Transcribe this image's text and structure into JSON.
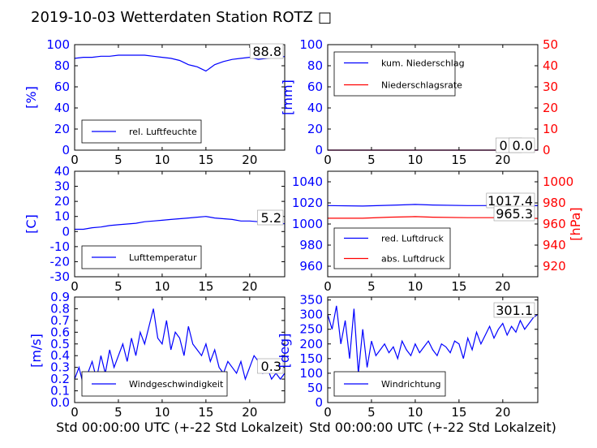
{
  "title": "2019-10-03 Wetterdaten Station ROTZ",
  "title_glyph": "□",
  "colors": {
    "blue": "#0000ff",
    "red": "#ff0000",
    "black": "#000000"
  },
  "chart_data": [
    {
      "type": "line",
      "ylabel": "[%]",
      "xlim": [
        0,
        24
      ],
      "ylim": [
        0,
        100
      ],
      "xticks": [
        0,
        5,
        10,
        15,
        20
      ],
      "yticks": [
        0,
        20,
        40,
        60,
        80,
        100
      ],
      "legend": {
        "placement": "bottom-left"
      },
      "annotations": [
        "88.8"
      ],
      "series": [
        {
          "name": "rel. Luftfeuchte",
          "color": "#0000ff",
          "x": [
            0,
            1,
            2,
            3,
            4,
            5,
            6,
            7,
            8,
            9,
            10,
            11,
            12,
            12.5,
            13,
            13.5,
            14,
            14.5,
            15,
            15.5,
            16,
            17,
            18,
            19,
            20,
            20.5,
            21,
            22,
            23,
            24
          ],
          "y": [
            87,
            88,
            88,
            89,
            89,
            90,
            90,
            90,
            90,
            89,
            88,
            87,
            85,
            83,
            81,
            80,
            79,
            77,
            75,
            78,
            81,
            84,
            86,
            87,
            88,
            87,
            86,
            87,
            88,
            88.8
          ]
        }
      ]
    },
    {
      "type": "line",
      "ylabel": "[mm]",
      "y2label": "[mm/std]",
      "xlim": [
        0,
        24
      ],
      "ylim": [
        0,
        100
      ],
      "y2lim": [
        0,
        50
      ],
      "xticks": [
        0,
        5,
        10,
        15,
        20
      ],
      "yticks": [
        0,
        20,
        40,
        60,
        80,
        100
      ],
      "y2ticks": [
        0,
        10,
        20,
        30,
        40,
        50
      ],
      "legend": {
        "placement": "top-left"
      },
      "annotations": [
        "0.0",
        "0.0"
      ],
      "series": [
        {
          "name": "kum. Niederschlag",
          "color": "#0000ff",
          "x": [
            0,
            24
          ],
          "y": [
            0,
            0
          ]
        },
        {
          "name": "Niederschlagsrate",
          "color": "#ff0000",
          "axis": "right",
          "x": [
            0,
            24
          ],
          "y": [
            0,
            0
          ]
        }
      ]
    },
    {
      "type": "line",
      "ylabel": "[C]",
      "xlim": [
        0,
        24
      ],
      "ylim": [
        -30,
        40
      ],
      "xticks": [
        0,
        5,
        10,
        15,
        20
      ],
      "yticks": [
        -30,
        -20,
        -10,
        0,
        10,
        20,
        30,
        40
      ],
      "legend": {
        "placement": "bottom-left"
      },
      "annotations": [
        "5.2"
      ],
      "series": [
        {
          "name": "Lufttemperatur",
          "color": "#0000ff",
          "x": [
            0,
            1,
            2,
            3,
            4,
            5,
            6,
            7,
            8,
            9,
            10,
            11,
            12,
            13,
            14,
            15,
            15.5,
            16,
            17,
            18,
            19,
            20,
            21,
            22,
            23,
            24
          ],
          "y": [
            1.5,
            1.5,
            2.5,
            3,
            4,
            4.5,
            5,
            5.5,
            6.5,
            7,
            7.5,
            8,
            8.5,
            9,
            9.5,
            10,
            9.5,
            9,
            8.5,
            8,
            7,
            7,
            6.5,
            6,
            5.5,
            5.2
          ]
        }
      ]
    },
    {
      "type": "line",
      "y2label": "[hPa]",
      "xlim": [
        0,
        24
      ],
      "ylim": [
        950,
        1050
      ],
      "y2lim": [
        910,
        1010
      ],
      "xticks": [
        0,
        5,
        10,
        15,
        20
      ],
      "yticks": [
        960,
        980,
        1000,
        1020,
        1040
      ],
      "y2ticks": [
        920,
        940,
        960,
        980,
        1000
      ],
      "legend": {
        "placement": "bottom-left"
      },
      "annotations": [
        "1017.4",
        "965.3"
      ],
      "series": [
        {
          "name": "red. Luftdruck",
          "color": "#0000ff",
          "x": [
            0,
            4,
            8,
            10,
            12,
            16,
            20,
            24
          ],
          "y": [
            1017.5,
            1017,
            1018,
            1018.5,
            1018,
            1017.5,
            1017.5,
            1017.4
          ]
        },
        {
          "name": "abs. Luftdruck",
          "color": "#ff0000",
          "axis": "right",
          "x": [
            0,
            4,
            7,
            10,
            12,
            16,
            20,
            24
          ],
          "y": [
            965.5,
            965.5,
            966.5,
            967,
            966.5,
            966,
            966,
            965.3
          ]
        }
      ]
    },
    {
      "type": "line",
      "ylabel": "[m/s]",
      "xlabel": "Std 00:00:00 UTC (+-22 Std Lokalzeit)",
      "xlim": [
        0,
        24
      ],
      "ylim": [
        0,
        0.9
      ],
      "xticks": [
        0,
        5,
        10,
        15,
        20
      ],
      "yticks": [
        0.0,
        0.1,
        0.2,
        0.3,
        0.4,
        0.5,
        0.6,
        0.7,
        0.8,
        0.9
      ],
      "legend": {
        "placement": "bottom-center"
      },
      "annotations": [
        "0.3"
      ],
      "series": [
        {
          "name": "Windgeschwindigkeit",
          "color": "#0000ff",
          "x": [
            0,
            0.5,
            1,
            1.5,
            2,
            2.5,
            3,
            3.5,
            4,
            4.5,
            5,
            5.5,
            6,
            6.5,
            7,
            7.5,
            8,
            8.5,
            9,
            9.5,
            10,
            10.5,
            11,
            11.5,
            12,
            12.5,
            13,
            13.5,
            14,
            14.5,
            15,
            15.5,
            16,
            16.5,
            17,
            17.5,
            18,
            18.5,
            19,
            19.5,
            20,
            20.5,
            21,
            21.5,
            22,
            22.5,
            23,
            23.5,
            24
          ],
          "y": [
            0.2,
            0.3,
            0.15,
            0.25,
            0.35,
            0.2,
            0.4,
            0.25,
            0.45,
            0.3,
            0.4,
            0.5,
            0.35,
            0.55,
            0.4,
            0.6,
            0.5,
            0.65,
            0.8,
            0.55,
            0.5,
            0.7,
            0.45,
            0.6,
            0.55,
            0.4,
            0.65,
            0.5,
            0.45,
            0.4,
            0.5,
            0.35,
            0.45,
            0.3,
            0.25,
            0.35,
            0.3,
            0.25,
            0.35,
            0.2,
            0.3,
            0.4,
            0.35,
            0.25,
            0.3,
            0.2,
            0.25,
            0.2,
            0.25
          ]
        }
      ]
    },
    {
      "type": "line",
      "ylabel": "[deg]",
      "xlabel": "Std 00:00:00 UTC (+-22 Std Lokalzeit)",
      "xlim": [
        0,
        24
      ],
      "ylim": [
        0,
        360
      ],
      "xticks": [
        0,
        5,
        10,
        15,
        20
      ],
      "yticks": [
        0,
        50,
        100,
        150,
        200,
        250,
        300,
        350
      ],
      "legend": {
        "placement": "bottom-left"
      },
      "annotations": [
        "301.1"
      ],
      "series": [
        {
          "name": "Windrichtung",
          "color": "#0000ff",
          "x": [
            0,
            0.5,
            1,
            1.5,
            2,
            2.5,
            3,
            3.5,
            4,
            4.5,
            5,
            5.5,
            6,
            6.5,
            7,
            7.5,
            8,
            8.5,
            9,
            9.5,
            10,
            10.5,
            11,
            11.5,
            12,
            12.5,
            13,
            13.5,
            14,
            14.5,
            15,
            15.5,
            16,
            16.5,
            17,
            17.5,
            18,
            18.5,
            19,
            19.5,
            20,
            20.5,
            21,
            21.5,
            22,
            22.5,
            23,
            23.5,
            24
          ],
          "y": [
            300,
            250,
            330,
            200,
            280,
            150,
            320,
            100,
            250,
            120,
            210,
            160,
            180,
            200,
            170,
            190,
            150,
            210,
            180,
            160,
            200,
            170,
            190,
            210,
            180,
            160,
            200,
            190,
            170,
            210,
            200,
            150,
            220,
            180,
            240,
            200,
            230,
            260,
            220,
            250,
            270,
            230,
            260,
            240,
            280,
            250,
            270,
            290,
            301
          ]
        }
      ]
    }
  ]
}
